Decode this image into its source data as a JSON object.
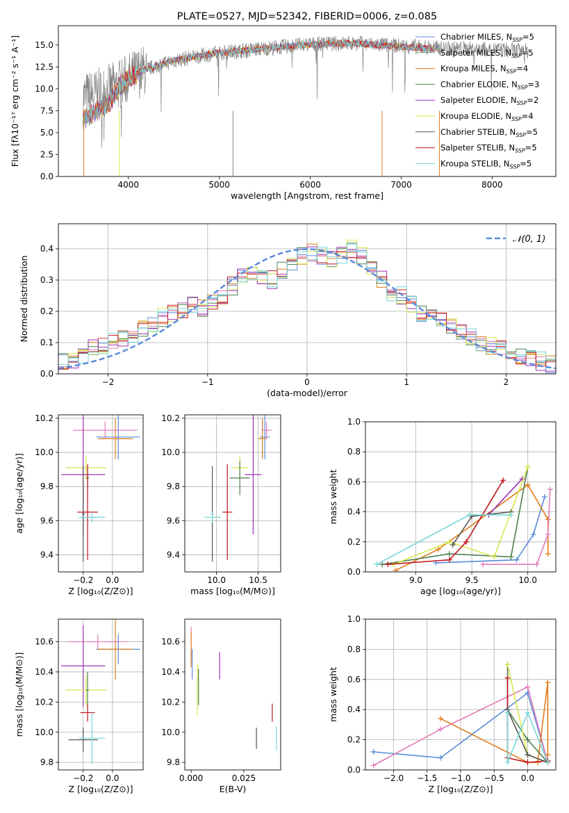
{
  "colors": {
    "Chabrier MILES": "#5b8bd9",
    "Salpeter MILES": "#8a8a8a",
    "Kroupa MILES": "#e07b1a",
    "Chabrier ELODIE": "#4f7f4f",
    "Salpeter ELODIE": "#9b30b0",
    "Kroupa ELODIE": "#d6e64a",
    "Chabrier STELIB": "#555555",
    "Salpeter STELIB": "#c0141b",
    "Kroupa STELIB": "#78d6d6",
    "pink": "#e37bb8",
    "normal": "#5b8bd9"
  },
  "chart_data": [
    {
      "id": "spectrum",
      "type": "line",
      "title": "PLATE=0527, MJD=52342, FIBERID=0006, z=0.085",
      "xlabel": "wavelength [Angstrom, rest frame]",
      "ylabel": "Flux [fλ10⁻¹⁷ erg cm⁻² s⁻¹ A⁻¹]",
      "xlim": [
        3230,
        8700
      ],
      "ylim": [
        0,
        17.2
      ],
      "xticks": [
        4000,
        5000,
        6000,
        7000,
        8000
      ],
      "yticks": [
        0.0,
        2.5,
        5.0,
        7.5,
        10.0,
        12.5,
        15.0
      ],
      "grid": false,
      "legend_position": "right",
      "legend": [
        "Chabrier MILES, N_SSP=5",
        "Salpeter MILES, N_SSP=5",
        "Kroupa MILES, N_SSP=4",
        "Chabrier ELODIE, N_SSP=3",
        "Salpeter ELODIE, N_SSP=2",
        "Kroupa ELODIE, N_SSP=4",
        "Chabrier STELIB, N_SSP=5",
        "Salpeter STELIB, N_SSP=5",
        "Kroupa STELIB, N_SSP=5"
      ],
      "continuum": {
        "x": [
          3500,
          3700,
          3800,
          3900,
          4000,
          4100,
          4200,
          4300,
          4400,
          4500,
          4700,
          4900,
          5100,
          5300,
          5500,
          5700,
          5900,
          6100,
          6300,
          6500,
          6700,
          6900,
          7100,
          7300,
          7420
        ],
        "y": [
          6.5,
          7.8,
          8.5,
          10.3,
          11.2,
          11.8,
          12.3,
          12.5,
          12.9,
          13.2,
          13.6,
          14.0,
          14.2,
          14.4,
          14.6,
          14.8,
          15.0,
          15.1,
          15.2,
          15.2,
          15.0,
          14.9,
          14.7,
          14.6,
          14.6
        ]
      },
      "observed_continuum": {
        "x": [
          3500,
          3700,
          3900,
          4100,
          4300,
          4500,
          4800,
          5100,
          5500,
          6000,
          6500,
          7000,
          7500,
          8000,
          8400
        ],
        "y": [
          9.0,
          9.5,
          10.5,
          11.8,
          12.6,
          13.2,
          13.8,
          14.2,
          14.6,
          15.1,
          15.2,
          14.9,
          14.6,
          14.5,
          14.3
        ]
      }
    },
    {
      "id": "residuals",
      "type": "step",
      "xlabel": "(data-model)/error",
      "ylabel": "Normed distribution",
      "xlim": [
        -2.5,
        2.5
      ],
      "ylim": [
        0,
        0.48
      ],
      "xticks": [
        -2,
        -1,
        0,
        1,
        2
      ],
      "yticks": [
        0.0,
        0.1,
        0.2,
        0.3,
        0.4
      ],
      "grid": true,
      "legend": [
        "𝒩(0, 1)"
      ],
      "legend_position": "top-right",
      "bins": [
        -2.5,
        -2.4,
        -2.3,
        -2.2,
        -2.1,
        -2.0,
        -1.9,
        -1.8,
        -1.7,
        -1.6,
        -1.5,
        -1.4,
        -1.3,
        -1.2,
        -1.1,
        -1.0,
        -0.9,
        -0.8,
        -0.7,
        -0.6,
        -0.5,
        -0.4,
        -0.3,
        -0.2,
        -0.1,
        0.0,
        0.1,
        0.2,
        0.3,
        0.4,
        0.5,
        0.6,
        0.7,
        0.8,
        0.9,
        1.0,
        1.1,
        1.2,
        1.3,
        1.4,
        1.5,
        1.6,
        1.7,
        1.8,
        1.9,
        2.0,
        2.1,
        2.2,
        2.3,
        2.4
      ],
      "base_hist": [
        0.04,
        0.04,
        0.06,
        0.08,
        0.09,
        0.1,
        0.11,
        0.12,
        0.15,
        0.16,
        0.18,
        0.19,
        0.2,
        0.22,
        0.21,
        0.23,
        0.25,
        0.28,
        0.31,
        0.33,
        0.31,
        0.3,
        0.33,
        0.35,
        0.38,
        0.39,
        0.38,
        0.37,
        0.38,
        0.4,
        0.38,
        0.34,
        0.3,
        0.26,
        0.25,
        0.22,
        0.19,
        0.18,
        0.17,
        0.15,
        0.14,
        0.12,
        0.1,
        0.09,
        0.08,
        0.06,
        0.05,
        0.05,
        0.04,
        0.03
      ],
      "normal_curve": {
        "mu": 0,
        "sigma": 1
      }
    },
    {
      "id": "age_vs_Z",
      "type": "errorbar",
      "xlabel": "Z [log₁₀(Z/Z⊙)]",
      "ylabel": "age  [log₁₀(age/yr)]",
      "xlim": [
        -0.37,
        0.21
      ],
      "ylim": [
        9.3,
        10.22
      ],
      "xticks": [
        -0.2,
        0.0
      ],
      "xticklabels": [
        "−0.2",
        "0.0"
      ],
      "yticks": [
        9.4,
        9.6,
        9.8,
        10.0,
        10.2
      ],
      "grid": true,
      "points": [
        {
          "c": "Chabrier MILES",
          "x": 0.04,
          "y": 10.09,
          "xerr": 0.15,
          "yerr": 0.13
        },
        {
          "c": "Kroupa MILES",
          "x": 0.02,
          "y": 10.08,
          "xerr": 0.12,
          "yerr": 0.12
        },
        {
          "c": "pink",
          "x": -0.05,
          "y": 10.13,
          "xerr": 0.22,
          "yerr": 0.05
        },
        {
          "c": "Kroupa ELODIE",
          "x": -0.18,
          "y": 9.91,
          "xerr": 0.14,
          "yerr": 0.07
        },
        {
          "c": "Salpeter ELODIE",
          "x": -0.2,
          "y": 9.87,
          "xerr": 0.15,
          "yerr": 0.35
        },
        {
          "c": "Chabrier ELODIE",
          "x": -0.17,
          "y": 9.85,
          "xerr": 0.01,
          "yerr": 0.07
        },
        {
          "c": "Salpeter STELIB",
          "x": -0.17,
          "y": 9.65,
          "xerr": 0.07,
          "yerr": 0.28
        },
        {
          "c": "Chabrier STELIB",
          "x": -0.2,
          "y": 9.64,
          "xerr": 0.01,
          "yerr": 0.28
        },
        {
          "c": "Kroupa STELIB",
          "x": -0.14,
          "y": 9.62,
          "xerr": 0.09,
          "yerr": 0.03
        }
      ]
    },
    {
      "id": "age_vs_mass",
      "type": "errorbar",
      "xlabel": "mass [log₁₀(M/M⊙)]",
      "ylabel": "",
      "xlim": [
        9.62,
        10.77
      ],
      "ylim": [
        9.3,
        10.22
      ],
      "xticks": [
        10.0,
        10.5
      ],
      "yticks": [
        9.4,
        9.6,
        9.8,
        10.0,
        10.2
      ],
      "grid": true,
      "points": [
        {
          "c": "Chabrier MILES",
          "x": 10.58,
          "y": 10.09,
          "xerr": 0.06,
          "yerr": 0.13
        },
        {
          "c": "Kroupa MILES",
          "x": 10.55,
          "y": 10.08,
          "xerr": 0.05,
          "yerr": 0.12
        },
        {
          "c": "pink",
          "x": 10.6,
          "y": 10.13,
          "xerr": 0.06,
          "yerr": 0.05
        },
        {
          "c": "Kroupa ELODIE",
          "x": 10.28,
          "y": 9.91,
          "xerr": 0.1,
          "yerr": 0.07
        },
        {
          "c": "Salpeter ELODIE",
          "x": 10.44,
          "y": 9.87,
          "xerr": 0.1,
          "yerr": 0.35
        },
        {
          "c": "Chabrier ELODIE",
          "x": 10.28,
          "y": 9.85,
          "xerr": 0.12,
          "yerr": 0.1
        },
        {
          "c": "Salpeter STELIB",
          "x": 10.13,
          "y": 9.65,
          "xerr": 0.06,
          "yerr": 0.28
        },
        {
          "c": "Chabrier STELIB",
          "x": 9.95,
          "y": 9.64,
          "xerr": 0.01,
          "yerr": 0.28
        },
        {
          "c": "Kroupa STELIB",
          "x": 9.95,
          "y": 9.62,
          "xerr": 0.1,
          "yerr": 0.03
        }
      ]
    },
    {
      "id": "weight_vs_age",
      "type": "line",
      "xlabel": "age  [log₁₀(age/yr)]",
      "ylabel": "mass weight",
      "xlim": [
        8.55,
        10.25
      ],
      "ylim": [
        0,
        1.0
      ],
      "xticks": [
        9.0,
        9.5,
        10.0
      ],
      "yticks": [
        0.0,
        0.2,
        0.4,
        0.6,
        0.8,
        1.0
      ],
      "grid": true,
      "series": [
        {
          "c": "Chabrier MILES",
          "x": [
            9.18,
            9.9,
            10.05,
            10.15
          ],
          "y": [
            0.06,
            0.08,
            0.25,
            0.5
          ]
        },
        {
          "c": "Kroupa MILES",
          "x": [
            8.82,
            9.2,
            10.0,
            10.18,
            10.18
          ],
          "y": [
            0.01,
            0.15,
            0.58,
            0.35,
            0.12
          ]
        },
        {
          "c": "pink",
          "x": [
            9.6,
            10.08,
            10.18,
            10.2
          ],
          "y": [
            0.05,
            0.05,
            0.25,
            0.55
          ]
        },
        {
          "c": "Chabrier ELODIE",
          "x": [
            8.7,
            9.3,
            9.85,
            10.0
          ],
          "y": [
            0.05,
            0.12,
            0.1,
            0.7
          ]
        },
        {
          "c": "Salpeter ELODIE",
          "x": [
            9.65,
            9.95
          ],
          "y": [
            0.38,
            0.62
          ]
        },
        {
          "c": "Kroupa ELODIE",
          "x": [
            8.8,
            9.3,
            9.7,
            10.0
          ],
          "y": [
            0.05,
            0.2,
            0.1,
            0.7
          ]
        },
        {
          "c": "Salpeter STELIB",
          "x": [
            8.75,
            9.3,
            9.45,
            9.78
          ],
          "y": [
            0.05,
            0.08,
            0.2,
            0.61
          ]
        },
        {
          "c": "Chabrier STELIB",
          "x": [
            9.33,
            9.5,
            9.85
          ],
          "y": [
            0.18,
            0.37,
            0.4
          ]
        },
        {
          "c": "Kroupa STELIB",
          "x": [
            8.65,
            9.48,
            9.85
          ],
          "y": [
            0.05,
            0.38,
            0.38
          ]
        }
      ]
    },
    {
      "id": "mass_vs_Z",
      "type": "errorbar",
      "xlabel": "Z [log₁₀(Z/Z⊙)]",
      "ylabel": "mass [log₁₀(M/M⊙)]",
      "xlim": [
        -0.37,
        0.21
      ],
      "ylim": [
        9.75,
        10.75
      ],
      "xticks": [
        -0.2,
        0.0
      ],
      "xticklabels": [
        "−0.2",
        "0.0"
      ],
      "yticks": [
        9.8,
        10.0,
        10.2,
        10.4,
        10.6
      ],
      "grid": true,
      "points": [
        {
          "c": "Chabrier MILES",
          "x": 0.04,
          "y": 10.55,
          "xerr": 0.15,
          "yerr": 0.1
        },
        {
          "c": "Kroupa MILES",
          "x": 0.02,
          "y": 10.55,
          "xerr": 0.12,
          "yerr": 0.2
        },
        {
          "c": "pink",
          "x": -0.1,
          "y": 10.6,
          "xerr": 0.2,
          "yerr": 0.05
        },
        {
          "c": "Salpeter ELODIE",
          "x": -0.2,
          "y": 10.44,
          "xerr": 0.15,
          "yerr": 0.27
        },
        {
          "c": "Kroupa ELODIE",
          "x": -0.18,
          "y": 10.28,
          "xerr": 0.14,
          "yerr": 0.1
        },
        {
          "c": "Chabrier ELODIE",
          "x": -0.17,
          "y": 10.28,
          "xerr": 0.01,
          "yerr": 0.12
        },
        {
          "c": "Salpeter STELIB",
          "x": -0.17,
          "y": 10.13,
          "xerr": 0.05,
          "yerr": 0.06
        },
        {
          "c": "Chabrier STELIB",
          "x": -0.2,
          "y": 9.95,
          "xerr": 0.1,
          "yerr": 0.08
        },
        {
          "c": "Kroupa STELIB",
          "x": -0.14,
          "y": 9.96,
          "xerr": 0.09,
          "yerr": 0.17
        }
      ]
    },
    {
      "id": "mass_vs_EBV",
      "type": "errorbar",
      "xlabel": "E(B-V)",
      "ylabel": "",
      "xlim": [
        -0.003,
        0.0425
      ],
      "ylim": [
        9.75,
        10.75
      ],
      "xticks": [
        0.0,
        0.025
      ],
      "xticklabels": [
        "0.000",
        "0.025"
      ],
      "yticks": [
        9.8,
        10.0,
        10.2,
        10.4,
        10.6
      ],
      "grid": false,
      "points": [
        {
          "c": "pink",
          "x": 0.0,
          "y": 10.6,
          "xerr": 0,
          "yerr": 0.1
        },
        {
          "c": "Kroupa MILES",
          "x": 0.0,
          "y": 10.55,
          "xerr": 0,
          "yerr": 0.12
        },
        {
          "c": "Chabrier MILES",
          "x": 0.0005,
          "y": 10.45,
          "xerr": 0,
          "yerr": 0.1
        },
        {
          "c": "Chabrier ELODIE",
          "x": 0.0035,
          "y": 10.3,
          "xerr": 0,
          "yerr": 0.12
        },
        {
          "c": "Kroupa ELODIE",
          "x": 0.003,
          "y": 10.28,
          "xerr": 0,
          "yerr": 0.17
        },
        {
          "c": "Salpeter ELODIE",
          "x": 0.0135,
          "y": 10.44,
          "xerr": 0,
          "yerr": 0.09
        },
        {
          "c": "Chabrier STELIB",
          "x": 0.031,
          "y": 9.96,
          "xerr": 0,
          "yerr": 0.07
        },
        {
          "c": "Salpeter STELIB",
          "x": 0.0385,
          "y": 10.13,
          "xerr": 0,
          "yerr": 0.06
        },
        {
          "c": "Kroupa STELIB",
          "x": 0.0405,
          "y": 9.96,
          "xerr": 0,
          "yerr": 0.08
        }
      ]
    },
    {
      "id": "weight_vs_Z",
      "type": "line",
      "xlabel": "Z [log₁₀(Z/Z⊙)]",
      "ylabel": "mass weight",
      "xlim": [
        -2.42,
        0.42
      ],
      "ylim": [
        0,
        1.0
      ],
      "xticks": [
        -2.0,
        -1.5,
        -1.0,
        -0.5,
        0.0
      ],
      "xticklabels": [
        "−2.0",
        "−1.5",
        "−1.0",
        "−0.5",
        "0.0"
      ],
      "yticks": [
        0.0,
        0.2,
        0.4,
        0.6,
        0.8,
        1.0
      ],
      "grid": true,
      "series": [
        {
          "c": "Chabrier MILES",
          "x": [
            -2.3,
            -1.3,
            0.0,
            0.3
          ],
          "y": [
            0.12,
            0.08,
            0.51,
            0.05
          ]
        },
        {
          "c": "pink",
          "x": [
            -2.3,
            -1.3,
            0.0,
            0.3
          ],
          "y": [
            0.03,
            0.27,
            0.55,
            0.05
          ]
        },
        {
          "c": "Kroupa MILES",
          "x": [
            -1.3,
            0.0,
            0.15,
            0.3,
            0.3
          ],
          "y": [
            0.34,
            0.05,
            0.05,
            0.58,
            0.1
          ]
        },
        {
          "c": "Chabrier ELODIE",
          "x": [
            -0.3,
            -0.3,
            0.0,
            0.3
          ],
          "y": [
            0.7,
            0.4,
            0.2,
            0.05
          ]
        },
        {
          "c": "Kroupa ELODIE",
          "x": [
            -0.3,
            0.0,
            0.3
          ],
          "y": [
            0.7,
            0.1,
            0.05
          ]
        },
        {
          "c": "Salpeter STELIB",
          "x": [
            -0.3,
            -0.3,
            0.0,
            0.3
          ],
          "y": [
            0.61,
            0.08,
            0.05,
            0.06
          ]
        },
        {
          "c": "Chabrier STELIB",
          "x": [
            -0.3,
            0.0,
            0.3
          ],
          "y": [
            0.4,
            0.1,
            0.05
          ]
        },
        {
          "c": "Kroupa STELIB",
          "x": [
            -0.3,
            -0.3,
            0.0,
            0.3
          ],
          "y": [
            0.38,
            0.05,
            0.38,
            0.05
          ]
        }
      ]
    }
  ]
}
